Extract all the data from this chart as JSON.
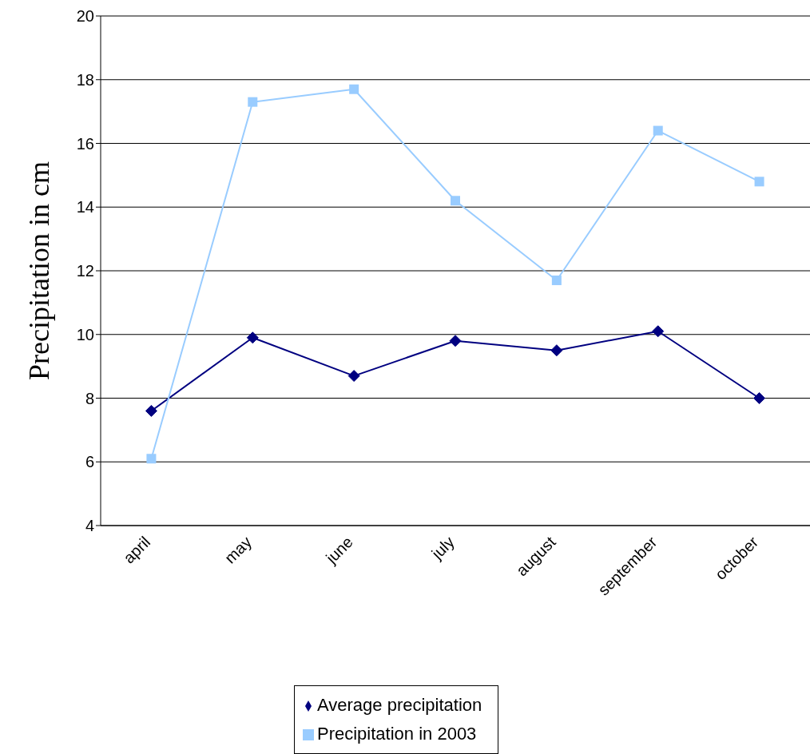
{
  "chart_data": {
    "type": "line",
    "ylabel": "Precipitation in cm",
    "categories": [
      "april",
      "may",
      "june",
      "july",
      "august",
      "september",
      "october"
    ],
    "series": [
      {
        "name": "Average precipitation",
        "color": "#000080",
        "marker": "diamond",
        "values": [
          7.6,
          9.9,
          8.7,
          9.8,
          9.5,
          10.1,
          8.0
        ]
      },
      {
        "name": "Precipitation in 2003",
        "color": "#99ccff",
        "marker": "square",
        "values": [
          6.1,
          17.3,
          17.7,
          14.2,
          11.7,
          16.4,
          14.8
        ]
      }
    ],
    "ylim": [
      4,
      20
    ],
    "yticks": [
      4,
      6,
      8,
      10,
      12,
      14,
      16,
      18,
      20
    ],
    "grid": "y",
    "legend": "bottom"
  }
}
